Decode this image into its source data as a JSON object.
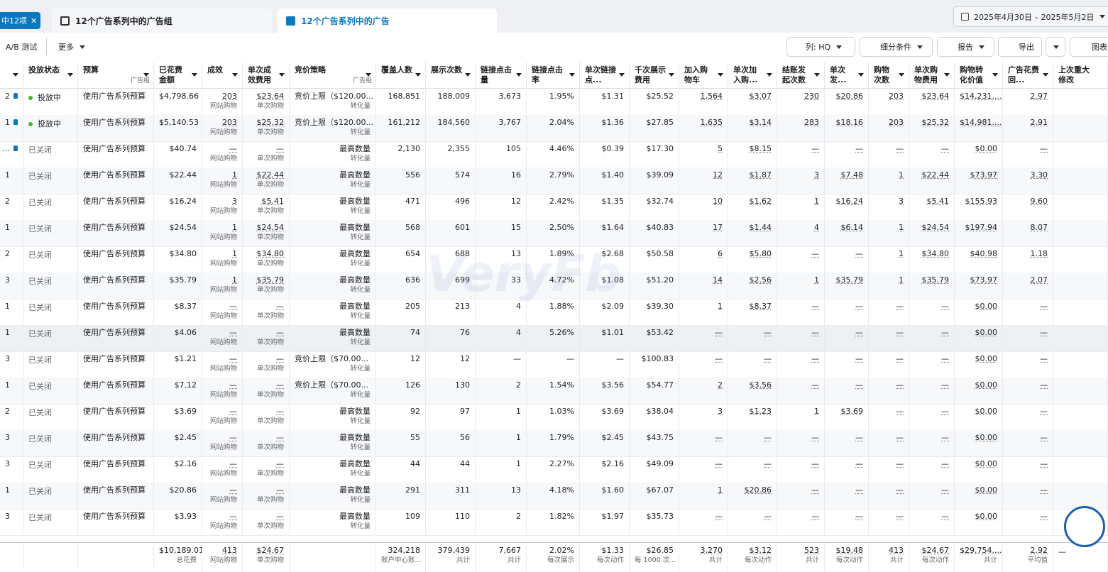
{
  "tabs": {
    "selected": "中12项",
    "ad_sets": "12个广告系列中的广告组",
    "ads": "12个广告系列中的广告"
  },
  "date_range": "2025年4月30日 – 2025年5月2日",
  "toolbar": {
    "ab_test": "A/B 测试",
    "more": "更多",
    "columns": "列: HQ",
    "breakdown": "细分条件",
    "reports": "报告",
    "export": "导出",
    "chart": "图表"
  },
  "watermark": "VeryFb",
  "table": {
    "headers": [
      "投放状态",
      [
        "预算",
        "广告组"
      ],
      "已花费金额",
      "成效",
      "单次成效费用",
      [
        "竞价策略",
        "广告组"
      ],
      "覆盖人数",
      "展示次数",
      "链接点击量",
      "链接点击率",
      "单次链接点...",
      "千次展示费用",
      "加入购物车",
      "单次加入购...",
      "结账发起次数",
      "单次发...",
      "购物次数",
      "单次购物费用",
      "购物转化价值",
      "广告花费回...",
      "上次重大修改"
    ],
    "rows": [
      {
        "id": "2",
        "pinned": true,
        "status": "投放中",
        "budget": "使用广告系列预算",
        "cells": [
          "$4,798.66",
          [
            "203",
            "网站购物"
          ],
          [
            "$23.64",
            "单次购物"
          ],
          [
            "竞价上限（$120.00...",
            "转化量"
          ],
          "168,851",
          "188,009",
          "3,673",
          "1.95%",
          "$1.31",
          "$25.52",
          "1,564",
          "$3.07",
          "230",
          "$20.86",
          "203",
          "$23.64",
          "$14,231....",
          "2.97"
        ]
      },
      {
        "id": "1",
        "pinned": true,
        "status": "投放中",
        "budget": "使用广告系列预算",
        "cells": [
          "$5,140.53",
          [
            "203",
            "网站购物"
          ],
          [
            "$25.32",
            "单次购物"
          ],
          [
            "竞价上限（$120.00...",
            "转化量"
          ],
          "161,212",
          "184,560",
          "3,767",
          "2.04%",
          "$1.36",
          "$27.85",
          "1,635",
          "$3.14",
          "283",
          "$18.16",
          "203",
          "$25.32",
          "$14,981....",
          "2.91"
        ]
      },
      {
        "id": "…",
        "pinned": true,
        "status": "已关闭",
        "budget": "使用广告系列预算",
        "cells": [
          "$40.74",
          [
            "—",
            "网站购物"
          ],
          [
            "—",
            "单次购物"
          ],
          [
            "最高数量",
            "转化量"
          ],
          "2,130",
          "2,355",
          "105",
          "4.46%",
          "$0.39",
          "$17.30",
          "5",
          "$8.15",
          "—",
          "—",
          "—",
          "—",
          "$0.00",
          "—"
        ]
      },
      {
        "id": "1",
        "status": "已关闭",
        "budget": "使用广告系列预算",
        "cells": [
          "$22.44",
          [
            "1",
            "网站购物"
          ],
          [
            "$22.44",
            "单次购物"
          ],
          [
            "最高数量",
            "转化量"
          ],
          "556",
          "574",
          "16",
          "2.79%",
          "$1.40",
          "$39.09",
          "12",
          "$1.87",
          "3",
          "$7.48",
          "1",
          "$22.44",
          "$73.97",
          "3.30"
        ]
      },
      {
        "id": "2",
        "status": "已关闭",
        "budget": "使用广告系列预算",
        "cells": [
          "$16.24",
          [
            "3",
            "网站购物"
          ],
          [
            "$5.41",
            "单次购物"
          ],
          [
            "最高数量",
            "转化量"
          ],
          "471",
          "496",
          "12",
          "2.42%",
          "$1.35",
          "$32.74",
          "10",
          "$1.62",
          "1",
          "$16.24",
          "3",
          "$5.41",
          "$155.93",
          "9.60"
        ]
      },
      {
        "id": "1",
        "status": "已关闭",
        "budget": "使用广告系列预算",
        "cells": [
          "$24.54",
          [
            "1",
            "网站购物"
          ],
          [
            "$24.54",
            "单次购物"
          ],
          [
            "最高数量",
            "转化量"
          ],
          "568",
          "601",
          "15",
          "2.50%",
          "$1.64",
          "$40.83",
          "17",
          "$1.44",
          "4",
          "$6.14",
          "1",
          "$24.54",
          "$197.94",
          "8.07"
        ]
      },
      {
        "id": "2",
        "status": "已关闭",
        "budget": "使用广告系列预算",
        "cells": [
          "$34.80",
          [
            "1",
            "网站购物"
          ],
          [
            "$34.80",
            "单次购物"
          ],
          [
            "最高数量",
            "转化量"
          ],
          "654",
          "688",
          "13",
          "1.89%",
          "$2.68",
          "$50.58",
          "6",
          "$5.80",
          "—",
          "—",
          "1",
          "$34.80",
          "$40.98",
          "1.18"
        ]
      },
      {
        "id": "3",
        "status": "已关闭",
        "budget": "使用广告系列预算",
        "cells": [
          "$35.79",
          [
            "1",
            "网站购物"
          ],
          [
            "$35.79",
            "单次购物"
          ],
          [
            "最高数量",
            "转化量"
          ],
          "636",
          "699",
          "33",
          "4.72%",
          "$1.08",
          "$51.20",
          "14",
          "$2.56",
          "1",
          "$35.79",
          "1",
          "$35.79",
          "$73.97",
          "2.07"
        ]
      },
      {
        "id": "1",
        "status": "已关闭",
        "budget": "使用广告系列预算",
        "cells": [
          "$8.37",
          [
            "—",
            "网站购物"
          ],
          [
            "—",
            "单次购物"
          ],
          [
            "最高数量",
            "转化量"
          ],
          "205",
          "213",
          "4",
          "1.88%",
          "$2.09",
          "$39.30",
          "1",
          "$8.37",
          "—",
          "—",
          "—",
          "—",
          "$0.00",
          "—"
        ]
      },
      {
        "id": "1",
        "status": "已关闭",
        "budget": "使用广告系列预算",
        "cells": [
          "$4.06",
          [
            "—",
            "网站购物"
          ],
          [
            "—",
            "单次购物"
          ],
          [
            "最高数量",
            "转化量"
          ],
          "74",
          "76",
          "4",
          "5.26%",
          "$1.01",
          "$53.42",
          "—",
          "—",
          "—",
          "—",
          "—",
          "—",
          "$0.00",
          "—"
        ]
      },
      {
        "id": "3",
        "status": "已关闭",
        "budget": "使用广告系列预算",
        "cells": [
          "$1.21",
          [
            "—",
            "网站购物"
          ],
          [
            "—",
            "单次购物"
          ],
          [
            "竞价上限（$70.00...",
            "转化量"
          ],
          "12",
          "12",
          "—",
          "—",
          "—",
          "$100.83",
          "—",
          "—",
          "—",
          "—",
          "—",
          "—",
          "$0.00",
          "—"
        ]
      },
      {
        "id": "1",
        "status": "已关闭",
        "budget": "使用广告系列预算",
        "cells": [
          "$7.12",
          [
            "—",
            "网站购物"
          ],
          [
            "—",
            "单次购物"
          ],
          [
            "竞价上限（$70.00...",
            "转化量"
          ],
          "126",
          "130",
          "2",
          "1.54%",
          "$3.56",
          "$54.77",
          "2",
          "$3.56",
          "—",
          "—",
          "—",
          "—",
          "$0.00",
          "—"
        ]
      },
      {
        "id": "2",
        "status": "已关闭",
        "budget": "使用广告系列预算",
        "cells": [
          "$3.69",
          [
            "—",
            "网站购物"
          ],
          [
            "—",
            "单次购物"
          ],
          [
            "最高数量",
            "转化量"
          ],
          "92",
          "97",
          "1",
          "1.03%",
          "$3.69",
          "$38.04",
          "3",
          "$1.23",
          "1",
          "$3.69",
          "—",
          "—",
          "$0.00",
          "—"
        ]
      },
      {
        "id": "3",
        "status": "已关闭",
        "budget": "使用广告系列预算",
        "cells": [
          "$2.45",
          [
            "—",
            "网站购物"
          ],
          [
            "—",
            "单次购物"
          ],
          [
            "最高数量",
            "转化量"
          ],
          "55",
          "56",
          "1",
          "1.79%",
          "$2.45",
          "$43.75",
          "—",
          "—",
          "—",
          "—",
          "—",
          "—",
          "$0.00",
          "—"
        ]
      },
      {
        "id": "3",
        "status": "已关闭",
        "budget": "使用广告系列预算",
        "cells": [
          "$2.16",
          [
            "—",
            "网站购物"
          ],
          [
            "—",
            "单次购物"
          ],
          [
            "最高数量",
            "转化量"
          ],
          "44",
          "44",
          "1",
          "2.27%",
          "$2.16",
          "$49.09",
          "—",
          "—",
          "—",
          "—",
          "—",
          "—",
          "$0.00",
          "—"
        ]
      },
      {
        "id": "1",
        "status": "已关闭",
        "budget": "使用广告系列预算",
        "cells": [
          "$20.86",
          [
            "—",
            "网站购物"
          ],
          [
            "—",
            "单次购物"
          ],
          [
            "最高数量",
            "转化量"
          ],
          "291",
          "311",
          "13",
          "4.18%",
          "$1.60",
          "$67.07",
          "1",
          "$20.86",
          "—",
          "—",
          "—",
          "—",
          "$0.00",
          "—"
        ]
      },
      {
        "id": "3",
        "status": "已关闭",
        "budget": "使用广告系列预算",
        "cells": [
          "$3.93",
          [
            "—",
            "网站购物"
          ],
          [
            "—",
            "单次购物"
          ],
          [
            "最高数量",
            "转化量"
          ],
          "109",
          "110",
          "2",
          "1.82%",
          "$1.97",
          "$35.73",
          "—",
          "—",
          "—",
          "—",
          "—",
          "—",
          "$0.00",
          "—"
        ]
      }
    ],
    "footer": [
      [
        "$10,189.01",
        "总花费"
      ],
      [
        "413",
        "网站购物"
      ],
      [
        "$24.67",
        "单次购物"
      ],
      null,
      [
        "324,218",
        "账户中心账..."
      ],
      [
        "379,439",
        "共计"
      ],
      [
        "7,667",
        "共计"
      ],
      [
        "2.02%",
        "每次展示"
      ],
      [
        "$1.33",
        "每次动作"
      ],
      [
        "$26.85",
        "每 1000 次..."
      ],
      [
        "3,270",
        "共计"
      ],
      [
        "$3.12",
        "每次动作"
      ],
      [
        "523",
        "共计"
      ],
      [
        "$19.48",
        "每次动作"
      ],
      [
        "413",
        "共计"
      ],
      [
        "$24.67",
        "每次动作"
      ],
      [
        "$29,754....",
        "共计"
      ],
      [
        "2.92",
        "平均值"
      ],
      "—"
    ]
  }
}
